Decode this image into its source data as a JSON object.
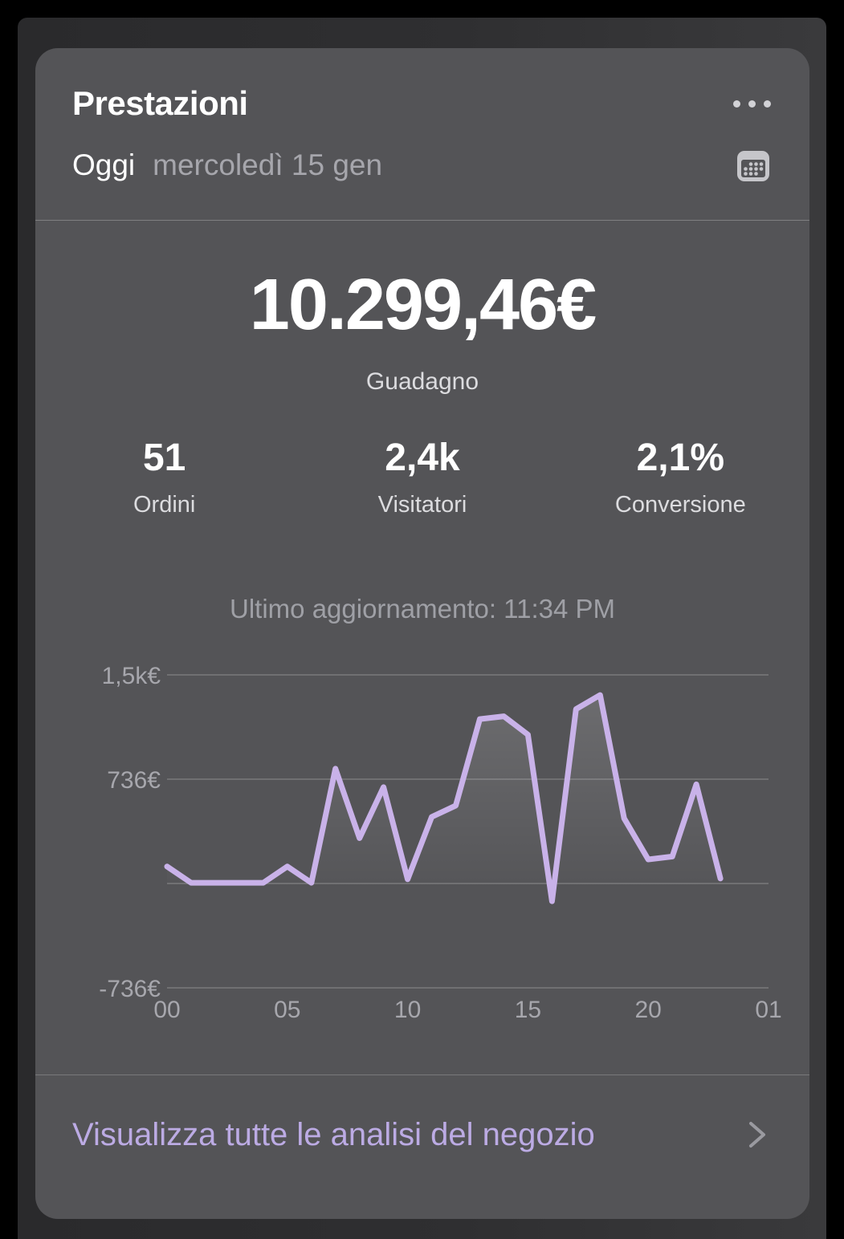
{
  "card": {
    "title": "Prestazioni",
    "date_selector": {
      "today_label": "Oggi",
      "date_text": "mercoledì 15 gen"
    },
    "revenue": {
      "value": "10.299,46€",
      "label": "Guadagno"
    },
    "stats": [
      {
        "value": "51",
        "label": "Ordini"
      },
      {
        "value": "2,4k",
        "label": "Visitatori"
      },
      {
        "value": "2,1%",
        "label": "Conversione"
      }
    ],
    "last_updated": "Ultimo aggiornamento: 11:34 PM",
    "footer": {
      "link_label": "Visualizza tutte le analisi del negozio"
    }
  },
  "icons": {
    "menu": "ellipsis-icon",
    "date": "calendar-icon",
    "footer": "chevron-right-icon"
  },
  "colors": {
    "page_bg": "#000000",
    "backdrop_bg": "#303032",
    "card_bg": "#545457",
    "text_primary": "#ffffff",
    "text_secondary": "#dcdcdf",
    "text_muted": "#a6a6ac",
    "axis_label": "#a7a7ad",
    "gridline": "rgba(255,255,255,0.22)",
    "accent_line": "#c9b2e9",
    "footer_link": "#bcabe4",
    "chevron": "#9a9aa0",
    "icon_gray": "#c6c6ca"
  },
  "chart_data": {
    "type": "line",
    "title": "",
    "xlabel": "",
    "ylabel": "",
    "x_hours": [
      0,
      1,
      2,
      3,
      4,
      5,
      6,
      7,
      8,
      9,
      10,
      11,
      12,
      13,
      14,
      15,
      16,
      17,
      18,
      19,
      20,
      21,
      22,
      23
    ],
    "values": [
      120,
      5,
      5,
      5,
      5,
      120,
      5,
      810,
      320,
      680,
      30,
      470,
      550,
      1160,
      1180,
      1050,
      -125,
      1230,
      1330,
      460,
      170,
      190,
      700,
      35
    ],
    "x_ticks": [
      {
        "hour": 0,
        "label": "00"
      },
      {
        "hour": 5,
        "label": "05"
      },
      {
        "hour": 10,
        "label": "10"
      },
      {
        "hour": 15,
        "label": "15"
      },
      {
        "hour": 20,
        "label": "20"
      },
      {
        "hour": 25,
        "label": "01"
      }
    ],
    "y_ticks": [
      {
        "value": 1472,
        "label": "1,5k€"
      },
      {
        "value": 736,
        "label": "736€"
      },
      {
        "value": 0,
        "label": ""
      },
      {
        "value": -736,
        "label": "-736€"
      }
    ],
    "x_domain_hours": [
      0,
      25
    ],
    "ylim": [
      -830,
      1560
    ],
    "grid": true,
    "legend": false,
    "currency": "EUR"
  }
}
